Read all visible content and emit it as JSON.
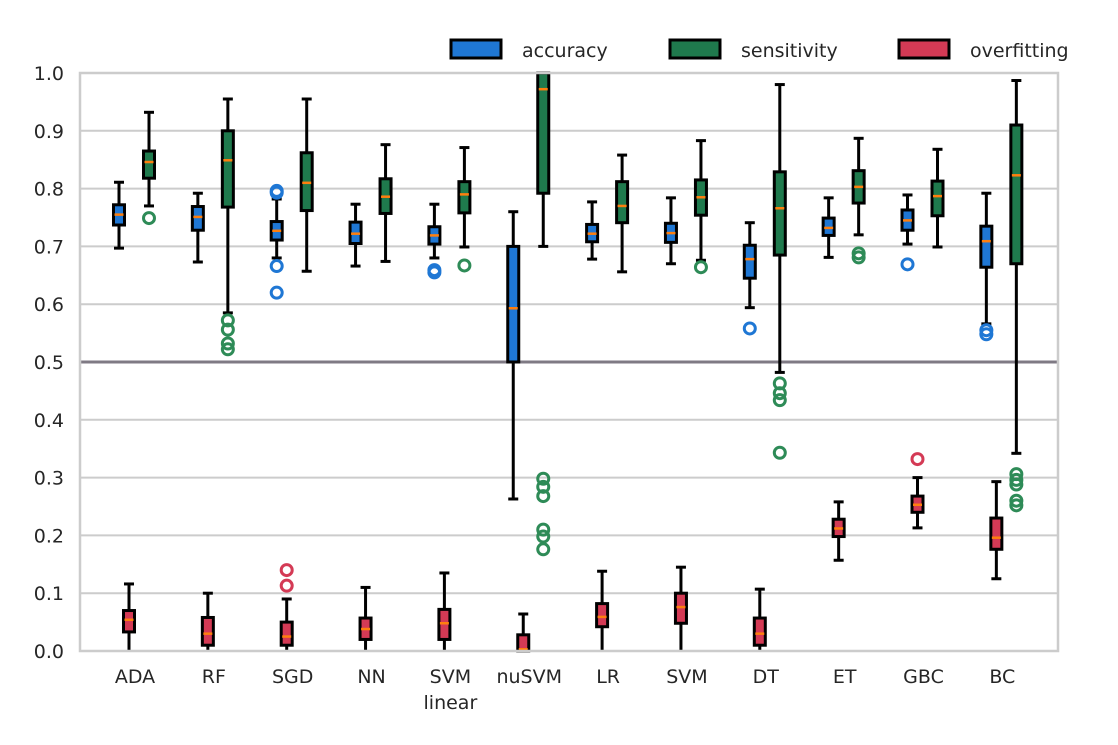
{
  "chart_data": {
    "type": "boxplot",
    "categories": [
      "ADA",
      "RF",
      "SGD",
      "NN",
      "SVM\nlinear",
      "nuSVM",
      "LR",
      "SVM",
      "DT",
      "ET",
      "GBC",
      "BC"
    ],
    "ylim": [
      0.0,
      1.0
    ],
    "yticks": [
      "0.0",
      "0.1",
      "0.2",
      "0.3",
      "0.4",
      "0.5",
      "0.6",
      "0.7",
      "0.8",
      "0.9",
      "1.0"
    ],
    "grid": "horizontal",
    "reference_line": 0.5,
    "legend_position": "top-right, above plot",
    "median_color": "#ff7f0e",
    "series": [
      {
        "name": "accuracy",
        "color": "#1f77d4",
        "outlier_color": "#1f77d4",
        "boxes": [
          {
            "whislo": 0.697,
            "q1": 0.737,
            "med": 0.755,
            "q3": 0.772,
            "whishi": 0.811,
            "fliers": []
          },
          {
            "whislo": 0.673,
            "q1": 0.728,
            "med": 0.751,
            "q3": 0.769,
            "whishi": 0.792,
            "fliers": []
          },
          {
            "whislo": 0.68,
            "q1": 0.711,
            "med": 0.727,
            "q3": 0.743,
            "whishi": 0.782,
            "fliers": [
              0.793,
              0.796,
              0.666,
              0.62
            ]
          },
          {
            "whislo": 0.666,
            "q1": 0.705,
            "med": 0.722,
            "q3": 0.742,
            "whishi": 0.773,
            "fliers": []
          },
          {
            "whislo": 0.68,
            "q1": 0.704,
            "med": 0.719,
            "q3": 0.734,
            "whishi": 0.773,
            "fliers": [
              0.655,
              0.659
            ]
          },
          {
            "whislo": 0.263,
            "q1": 0.5,
            "med": 0.593,
            "q3": 0.7,
            "whishi": 0.76,
            "fliers": []
          },
          {
            "whislo": 0.678,
            "q1": 0.708,
            "med": 0.722,
            "q3": 0.738,
            "whishi": 0.777,
            "fliers": []
          },
          {
            "whislo": 0.67,
            "q1": 0.707,
            "med": 0.723,
            "q3": 0.74,
            "whishi": 0.784,
            "fliers": []
          },
          {
            "whislo": 0.594,
            "q1": 0.645,
            "med": 0.678,
            "q3": 0.702,
            "whishi": 0.741,
            "fliers": [
              0.558
            ]
          },
          {
            "whislo": 0.681,
            "q1": 0.719,
            "med": 0.732,
            "q3": 0.749,
            "whishi": 0.784,
            "fliers": []
          },
          {
            "whislo": 0.704,
            "q1": 0.728,
            "med": 0.745,
            "q3": 0.763,
            "whishi": 0.789,
            "fliers": [
              0.669
            ]
          },
          {
            "whislo": 0.566,
            "q1": 0.664,
            "med": 0.709,
            "q3": 0.735,
            "whishi": 0.792,
            "fliers": [
              0.548,
              0.555
            ]
          }
        ]
      },
      {
        "name": "sensitivity",
        "color": "#1f7a4d",
        "outlier_color": "#2e8b57",
        "boxes": [
          {
            "whislo": 0.77,
            "q1": 0.818,
            "med": 0.846,
            "q3": 0.865,
            "whishi": 0.932,
            "fliers": [
              0.749
            ]
          },
          {
            "whislo": 0.585,
            "q1": 0.768,
            "med": 0.849,
            "q3": 0.9,
            "whishi": 0.955,
            "fliers": [
              0.572,
              0.556,
              0.532,
              0.522
            ]
          },
          {
            "whislo": 0.657,
            "q1": 0.762,
            "med": 0.81,
            "q3": 0.862,
            "whishi": 0.955,
            "fliers": []
          },
          {
            "whislo": 0.674,
            "q1": 0.757,
            "med": 0.786,
            "q3": 0.817,
            "whishi": 0.876,
            "fliers": []
          },
          {
            "whislo": 0.699,
            "q1": 0.758,
            "med": 0.79,
            "q3": 0.812,
            "whishi": 0.871,
            "fliers": [
              0.667
            ]
          },
          {
            "whislo": 0.7,
            "q1": 0.792,
            "med": 0.972,
            "q3": 1.0,
            "whishi": 1.0,
            "fliers": [
              0.298,
              0.284,
              0.268,
              0.21,
              0.198,
              0.176
            ]
          },
          {
            "whislo": 0.656,
            "q1": 0.741,
            "med": 0.77,
            "q3": 0.812,
            "whishi": 0.858,
            "fliers": []
          },
          {
            "whislo": 0.676,
            "q1": 0.754,
            "med": 0.785,
            "q3": 0.815,
            "whishi": 0.883,
            "fliers": [
              0.664
            ]
          },
          {
            "whislo": 0.482,
            "q1": 0.685,
            "med": 0.766,
            "q3": 0.829,
            "whishi": 0.98,
            "fliers": [
              0.463,
              0.446,
              0.434,
              0.343
            ]
          },
          {
            "whislo": 0.72,
            "q1": 0.775,
            "med": 0.803,
            "q3": 0.831,
            "whishi": 0.887,
            "fliers": [
              0.688,
              0.681
            ]
          },
          {
            "whislo": 0.699,
            "q1": 0.753,
            "med": 0.787,
            "q3": 0.813,
            "whishi": 0.868,
            "fliers": []
          },
          {
            "whislo": 0.342,
            "q1": 0.67,
            "med": 0.823,
            "q3": 0.91,
            "whishi": 0.987,
            "fliers": [
              0.306,
              0.296,
              0.288,
              0.26,
              0.252
            ]
          }
        ]
      },
      {
        "name": "overfitting",
        "color": "#d43a55",
        "outlier_color": "#d43a55",
        "boxes": [
          {
            "whislo": 0.0,
            "q1": 0.033,
            "med": 0.054,
            "q3": 0.07,
            "whishi": 0.116,
            "fliers": []
          },
          {
            "whislo": 0.0,
            "q1": 0.01,
            "med": 0.03,
            "q3": 0.058,
            "whishi": 0.1,
            "fliers": []
          },
          {
            "whislo": 0.0,
            "q1": 0.01,
            "med": 0.025,
            "q3": 0.05,
            "whishi": 0.09,
            "fliers": [
              0.14,
              0.113
            ]
          },
          {
            "whislo": 0.0,
            "q1": 0.02,
            "med": 0.038,
            "q3": 0.057,
            "whishi": 0.11,
            "fliers": []
          },
          {
            "whislo": 0.0,
            "q1": 0.02,
            "med": 0.048,
            "q3": 0.072,
            "whishi": 0.135,
            "fliers": []
          },
          {
            "whislo": 0.0,
            "q1": 0.0,
            "med": 0.003,
            "q3": 0.028,
            "whishi": 0.064,
            "fliers": []
          },
          {
            "whislo": 0.0,
            "q1": 0.042,
            "med": 0.059,
            "q3": 0.082,
            "whishi": 0.138,
            "fliers": []
          },
          {
            "whislo": 0.0,
            "q1": 0.048,
            "med": 0.076,
            "q3": 0.1,
            "whishi": 0.145,
            "fliers": []
          },
          {
            "whislo": 0.0,
            "q1": 0.01,
            "med": 0.03,
            "q3": 0.057,
            "whishi": 0.107,
            "fliers": []
          },
          {
            "whislo": 0.157,
            "q1": 0.198,
            "med": 0.212,
            "q3": 0.228,
            "whishi": 0.258,
            "fliers": []
          },
          {
            "whislo": 0.213,
            "q1": 0.24,
            "med": 0.253,
            "q3": 0.268,
            "whishi": 0.3,
            "fliers": [
              0.332
            ]
          },
          {
            "whislo": 0.125,
            "q1": 0.176,
            "med": 0.196,
            "q3": 0.23,
            "whishi": 0.293,
            "fliers": []
          }
        ]
      }
    ]
  }
}
